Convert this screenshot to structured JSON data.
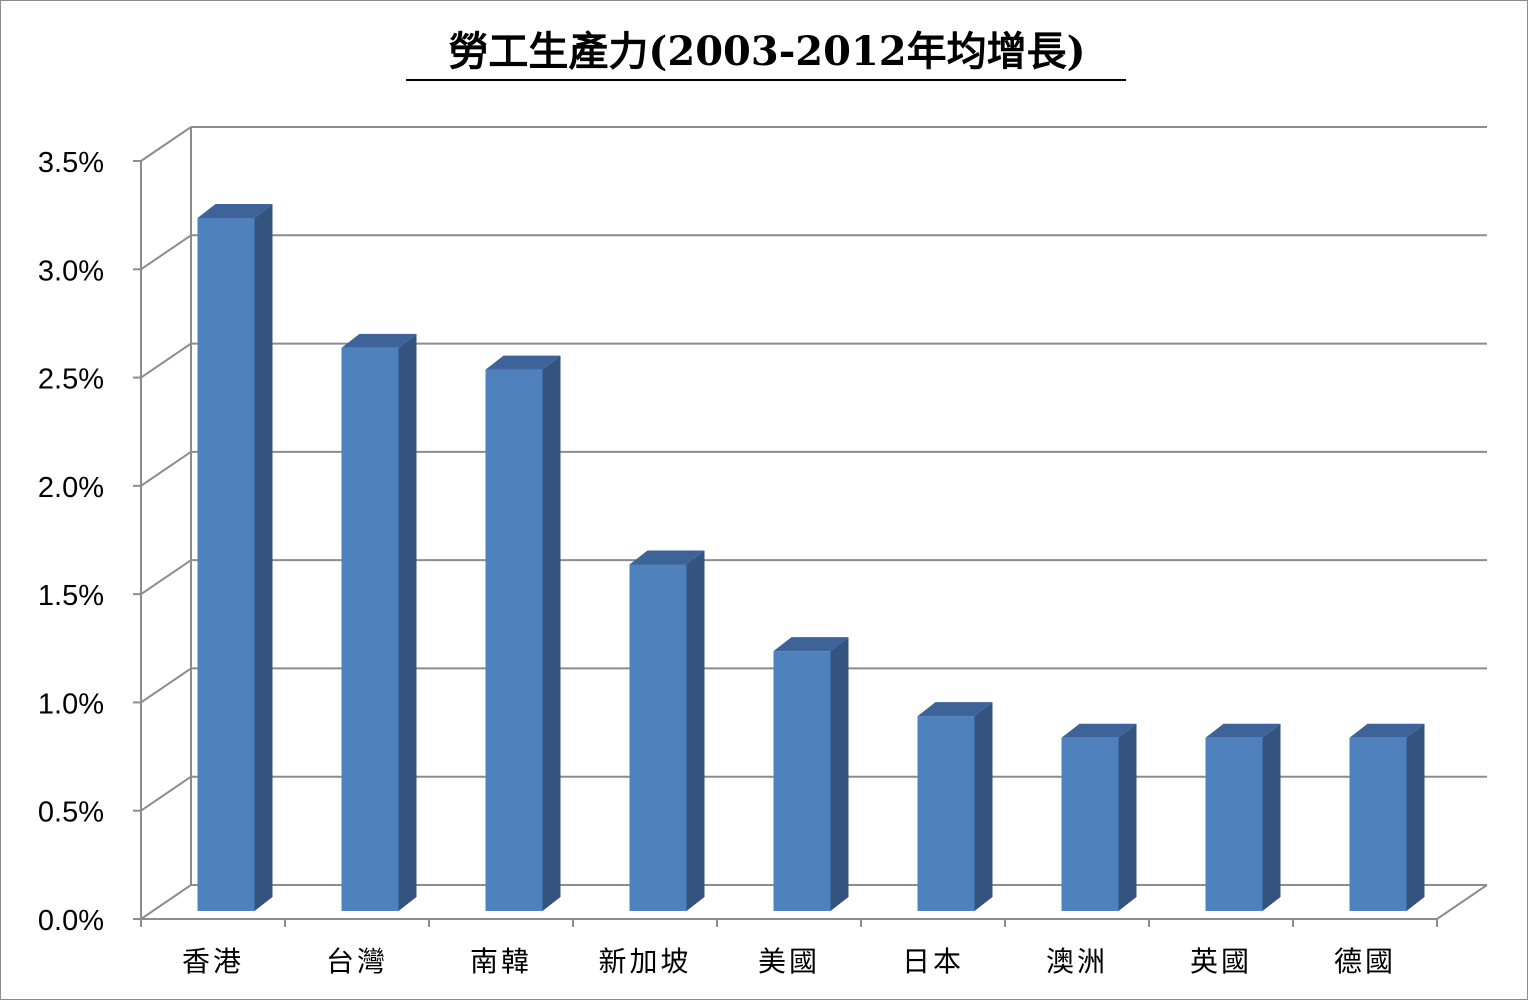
{
  "chart_data": {
    "type": "bar",
    "title": "勞工生產力(2003-2012年均增長)",
    "xlabel": "",
    "ylabel": "",
    "categories": [
      "香港",
      "台灣",
      "南韓",
      "新加坡",
      "美國",
      "日本",
      "澳洲",
      "英國",
      "德國"
    ],
    "values": [
      3.2,
      2.6,
      2.5,
      1.6,
      1.2,
      0.9,
      0.8,
      0.8,
      0.8
    ],
    "value_unit": "%",
    "ylim": [
      0,
      3.5
    ],
    "yticks": [
      "0.0%",
      "0.5%",
      "1.0%",
      "1.5%",
      "2.0%",
      "2.5%",
      "3.0%",
      "3.5%"
    ],
    "grid": true,
    "legend": "none",
    "style": "3d-clustered-column",
    "colors": {
      "bar_front": "#4f81bd",
      "bar_side": "#34537e",
      "bar_top": "#3d6399",
      "gridline": "#8c8c8c",
      "axis": "#8c8c8c"
    }
  }
}
